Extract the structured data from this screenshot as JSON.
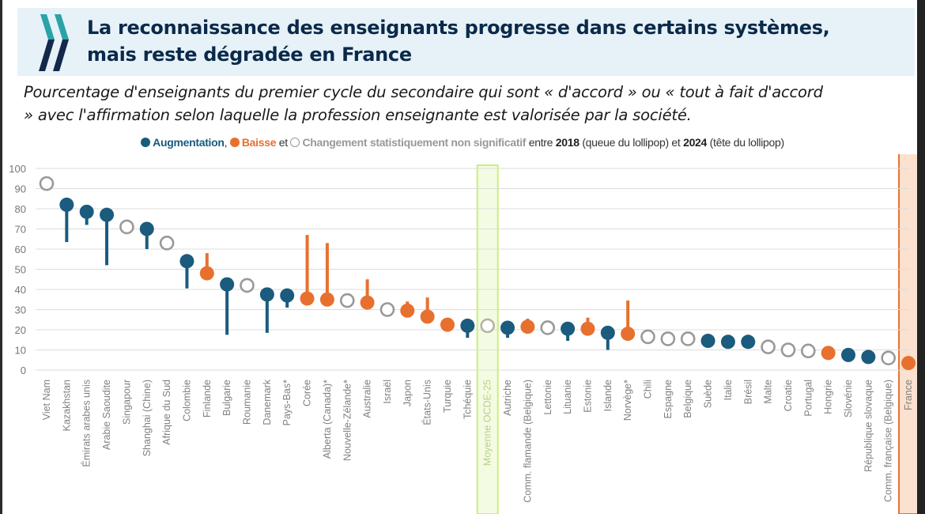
{
  "header": {
    "title_line1": "La reconnaissance des enseignants progresse dans certains systèmes,",
    "title_line2": "mais reste dégradée en France",
    "logo": "oecd-chevron-logo-icon"
  },
  "subtitle_line1": "Pourcentage d'enseignants du premier cycle du secondaire qui sont « d'accord » ou « tout à fait d'accord",
  "subtitle_line2": "» avec l'affirmation selon laquelle la profession enseignante est valorisée par la société.",
  "legend": {
    "increase": "Augmentation",
    "sep1": ",",
    "decrease": "Baisse",
    "and": "et",
    "nonsig": "Changement statistiquement non significatif",
    "between": "entre",
    "year1": "2018",
    "year1_note": "(queue du lollipop) et",
    "year2": "2024",
    "year2_note": "(tête du lollipop)"
  },
  "colors": {
    "increase": "#1a5b7e",
    "decrease": "#e8702e",
    "nonsig": "#999999",
    "oecd_highlight": "#c8f07a",
    "france_highlight": "#e8702e"
  },
  "chart_data": {
    "type": "lollipop",
    "title": "La reconnaissance des enseignants progresse dans certains systèmes, mais reste dégradée en France",
    "ylabel": "",
    "xlabel": "",
    "ylim": [
      0,
      100
    ],
    "yticks": [
      0,
      10,
      20,
      30,
      40,
      50,
      60,
      70,
      80,
      90,
      100
    ],
    "grid": true,
    "highlighted": [
      "Moyenne OCDE-25",
      "France"
    ],
    "series_names": {
      "2018": "queue du lollipop",
      "2024": "tête du lollipop"
    },
    "points": [
      {
        "label": "Viet Nam",
        "v2024": 92.5,
        "v2018": null,
        "change": "ns"
      },
      {
        "label": "Kazakhstan",
        "v2024": 82,
        "v2018": 63.5,
        "change": "increase"
      },
      {
        "label": "Émirats arabes unis",
        "v2024": 78.5,
        "v2018": 72,
        "change": "increase"
      },
      {
        "label": "Arabie Saoudite",
        "v2024": 77,
        "v2018": 52,
        "change": "increase"
      },
      {
        "label": "Singapour",
        "v2024": 71,
        "v2018": null,
        "change": "ns"
      },
      {
        "label": "Shanghai (Chine)",
        "v2024": 70,
        "v2018": 60,
        "change": "increase"
      },
      {
        "label": "Afrique du Sud",
        "v2024": 63,
        "v2018": null,
        "change": "ns"
      },
      {
        "label": "Colombie",
        "v2024": 54,
        "v2018": 40.5,
        "change": "increase"
      },
      {
        "label": "Finlande",
        "v2024": 48,
        "v2018": 58,
        "change": "decrease"
      },
      {
        "label": "Bulgarie",
        "v2024": 42.5,
        "v2018": 17.5,
        "change": "increase"
      },
      {
        "label": "Roumanie",
        "v2024": 42,
        "v2018": null,
        "change": "ns"
      },
      {
        "label": "Danemark",
        "v2024": 37.5,
        "v2018": 18.5,
        "change": "increase"
      },
      {
        "label": "Pays-Bas*",
        "v2024": 37,
        "v2018": 31,
        "change": "increase"
      },
      {
        "label": "Corée",
        "v2024": 35.5,
        "v2018": 67,
        "change": "decrease"
      },
      {
        "label": "Alberta (Canada)*",
        "v2024": 35,
        "v2018": 63,
        "change": "decrease"
      },
      {
        "label": "Nouvelle-Zélande*",
        "v2024": 34.5,
        "v2018": null,
        "change": "ns"
      },
      {
        "label": "Australie",
        "v2024": 33.5,
        "v2018": 45,
        "change": "decrease"
      },
      {
        "label": "Israël",
        "v2024": 30,
        "v2018": null,
        "change": "ns"
      },
      {
        "label": "Japon",
        "v2024": 29.5,
        "v2018": 34,
        "change": "decrease"
      },
      {
        "label": "États-Unis",
        "v2024": 26.5,
        "v2018": 36,
        "change": "decrease"
      },
      {
        "label": "Turquie",
        "v2024": 22.5,
        "v2018": 23,
        "change": "decrease"
      },
      {
        "label": "Tchéquie",
        "v2024": 22,
        "v2018": 16,
        "change": "increase"
      },
      {
        "label": "Moyenne OCDE-25",
        "v2024": 22,
        "v2018": null,
        "change": "ns"
      },
      {
        "label": "Autriche",
        "v2024": 21,
        "v2018": 16,
        "change": "increase"
      },
      {
        "label": "Comm. flamande (Belgique)",
        "v2024": 21.5,
        "v2018": 25.5,
        "change": "decrease"
      },
      {
        "label": "Lettonie",
        "v2024": 21,
        "v2018": null,
        "change": "ns"
      },
      {
        "label": "Lituanie",
        "v2024": 20.5,
        "v2018": 14.5,
        "change": "increase"
      },
      {
        "label": "Estonie",
        "v2024": 20.5,
        "v2018": 26,
        "change": "decrease"
      },
      {
        "label": "Islande",
        "v2024": 18.5,
        "v2018": 10,
        "change": "increase"
      },
      {
        "label": "Norvège*",
        "v2024": 18,
        "v2018": 34.5,
        "change": "decrease"
      },
      {
        "label": "Chili",
        "v2024": 16.5,
        "v2018": null,
        "change": "ns"
      },
      {
        "label": "Espagne",
        "v2024": 15.5,
        "v2018": null,
        "change": "ns"
      },
      {
        "label": "Belgique",
        "v2024": 15.5,
        "v2018": null,
        "change": "ns"
      },
      {
        "label": "Suède",
        "v2024": 14.5,
        "v2018": 12.5,
        "change": "increase"
      },
      {
        "label": "Italie",
        "v2024": 14,
        "v2018": 13.5,
        "change": "increase"
      },
      {
        "label": "Brésil",
        "v2024": 14,
        "v2018": 13.5,
        "change": "increase"
      },
      {
        "label": "Malte",
        "v2024": 11.5,
        "v2018": null,
        "change": "ns"
      },
      {
        "label": "Croatie",
        "v2024": 10,
        "v2018": null,
        "change": "ns"
      },
      {
        "label": "Portugal",
        "v2024": 9.5,
        "v2018": null,
        "change": "ns"
      },
      {
        "label": "Hongrie",
        "v2024": 8.5,
        "v2018": 9,
        "change": "decrease"
      },
      {
        "label": "Slovénie",
        "v2024": 7.5,
        "v2018": 7,
        "change": "increase"
      },
      {
        "label": "République slovaque",
        "v2024": 6.5,
        "v2018": 6,
        "change": "increase"
      },
      {
        "label": "Comm. française (Belgique)",
        "v2024": 6,
        "v2018": null,
        "change": "ns"
      },
      {
        "label": "France",
        "v2024": 3.5,
        "v2018": 4,
        "change": "decrease"
      }
    ]
  }
}
